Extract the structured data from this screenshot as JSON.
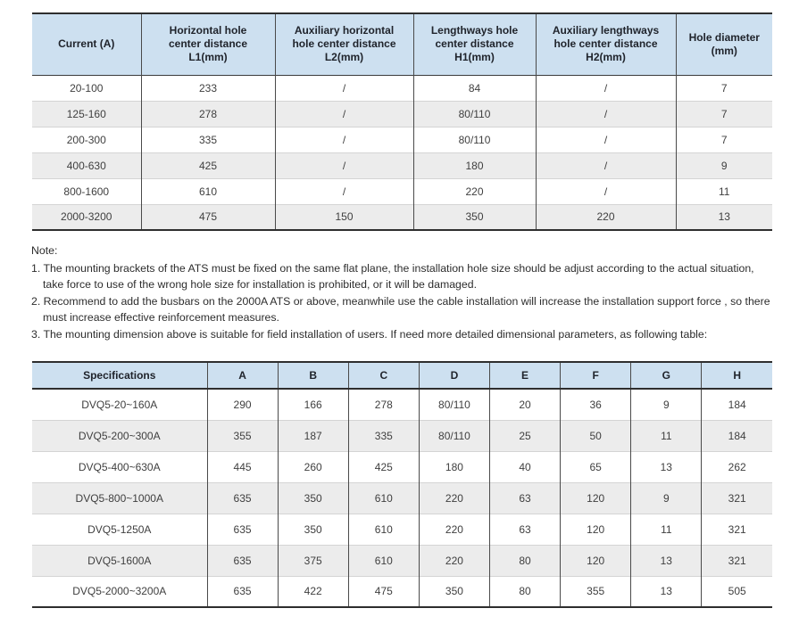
{
  "colors": {
    "header_bg": "#cde0f0",
    "alt_row_bg": "#ececec",
    "border_dark": "#2e2e2e",
    "row_separator": "#d4d4d4",
    "header_text": "#20242c",
    "body_text": "#3f3f3f"
  },
  "mounting_table": {
    "headers": [
      "Current (A)",
      "Horizontal hole\ncenter distance\nL1(mm)",
      "Auxiliary horizontal\nhole center distance\nL2(mm)",
      "Lengthways hole\ncenter distance\nH1(mm)",
      "Auxiliary lengthways\nhole center distance\nH2(mm)",
      "Hole diameter\n(mm)"
    ],
    "rows": [
      [
        "20-100",
        "233",
        "/",
        "84",
        "/",
        "7"
      ],
      [
        "125-160",
        "278",
        "/",
        "80/110",
        "/",
        "7"
      ],
      [
        "200-300",
        "335",
        "/",
        "80/110",
        "/",
        "7"
      ],
      [
        "400-630",
        "425",
        "/",
        "180",
        "/",
        "9"
      ],
      [
        "800-1600",
        "610",
        "/",
        "220",
        "/",
        "11"
      ],
      [
        "2000-3200",
        "475",
        "150",
        "350",
        "220",
        "13"
      ]
    ]
  },
  "notes": {
    "title": "Note:",
    "items": [
      "1. The mounting brackets of the ATS must be fixed on the same flat plane, the installation hole size should be adjust according to the actual situation, take force to use of the wrong hole size for installation is prohibited, or it will be damaged.",
      "2. Recommend to add the busbars on the 2000A ATS or above, meanwhile use the cable installation will increase the installation support force , so there must increase effective reinforcement measures.",
      "3. The mounting dimension above is suitable for field installation of users. If need more detailed dimensional parameters, as following table:"
    ]
  },
  "dimensions_table": {
    "headers": [
      "Specifications",
      "A",
      "B",
      "C",
      "D",
      "E",
      "F",
      "G",
      "H"
    ],
    "rows": [
      [
        "DVQ5-20~160A",
        "290",
        "166",
        "278",
        "80/110",
        "20",
        "36",
        "9",
        "184"
      ],
      [
        "DVQ5-200~300A",
        "355",
        "187",
        "335",
        "80/110",
        "25",
        "50",
        "11",
        "184"
      ],
      [
        "DVQ5-400~630A",
        "445",
        "260",
        "425",
        "180",
        "40",
        "65",
        "13",
        "262"
      ],
      [
        "DVQ5-800~1000A",
        "635",
        "350",
        "610",
        "220",
        "63",
        "120",
        "9",
        "321"
      ],
      [
        "DVQ5-1250A",
        "635",
        "350",
        "610",
        "220",
        "63",
        "120",
        "11",
        "321"
      ],
      [
        "DVQ5-1600A",
        "635",
        "375",
        "610",
        "220",
        "80",
        "120",
        "13",
        "321"
      ],
      [
        "DVQ5-2000~3200A",
        "635",
        "422",
        "475",
        "350",
        "80",
        "355",
        "13",
        "505"
      ]
    ]
  }
}
